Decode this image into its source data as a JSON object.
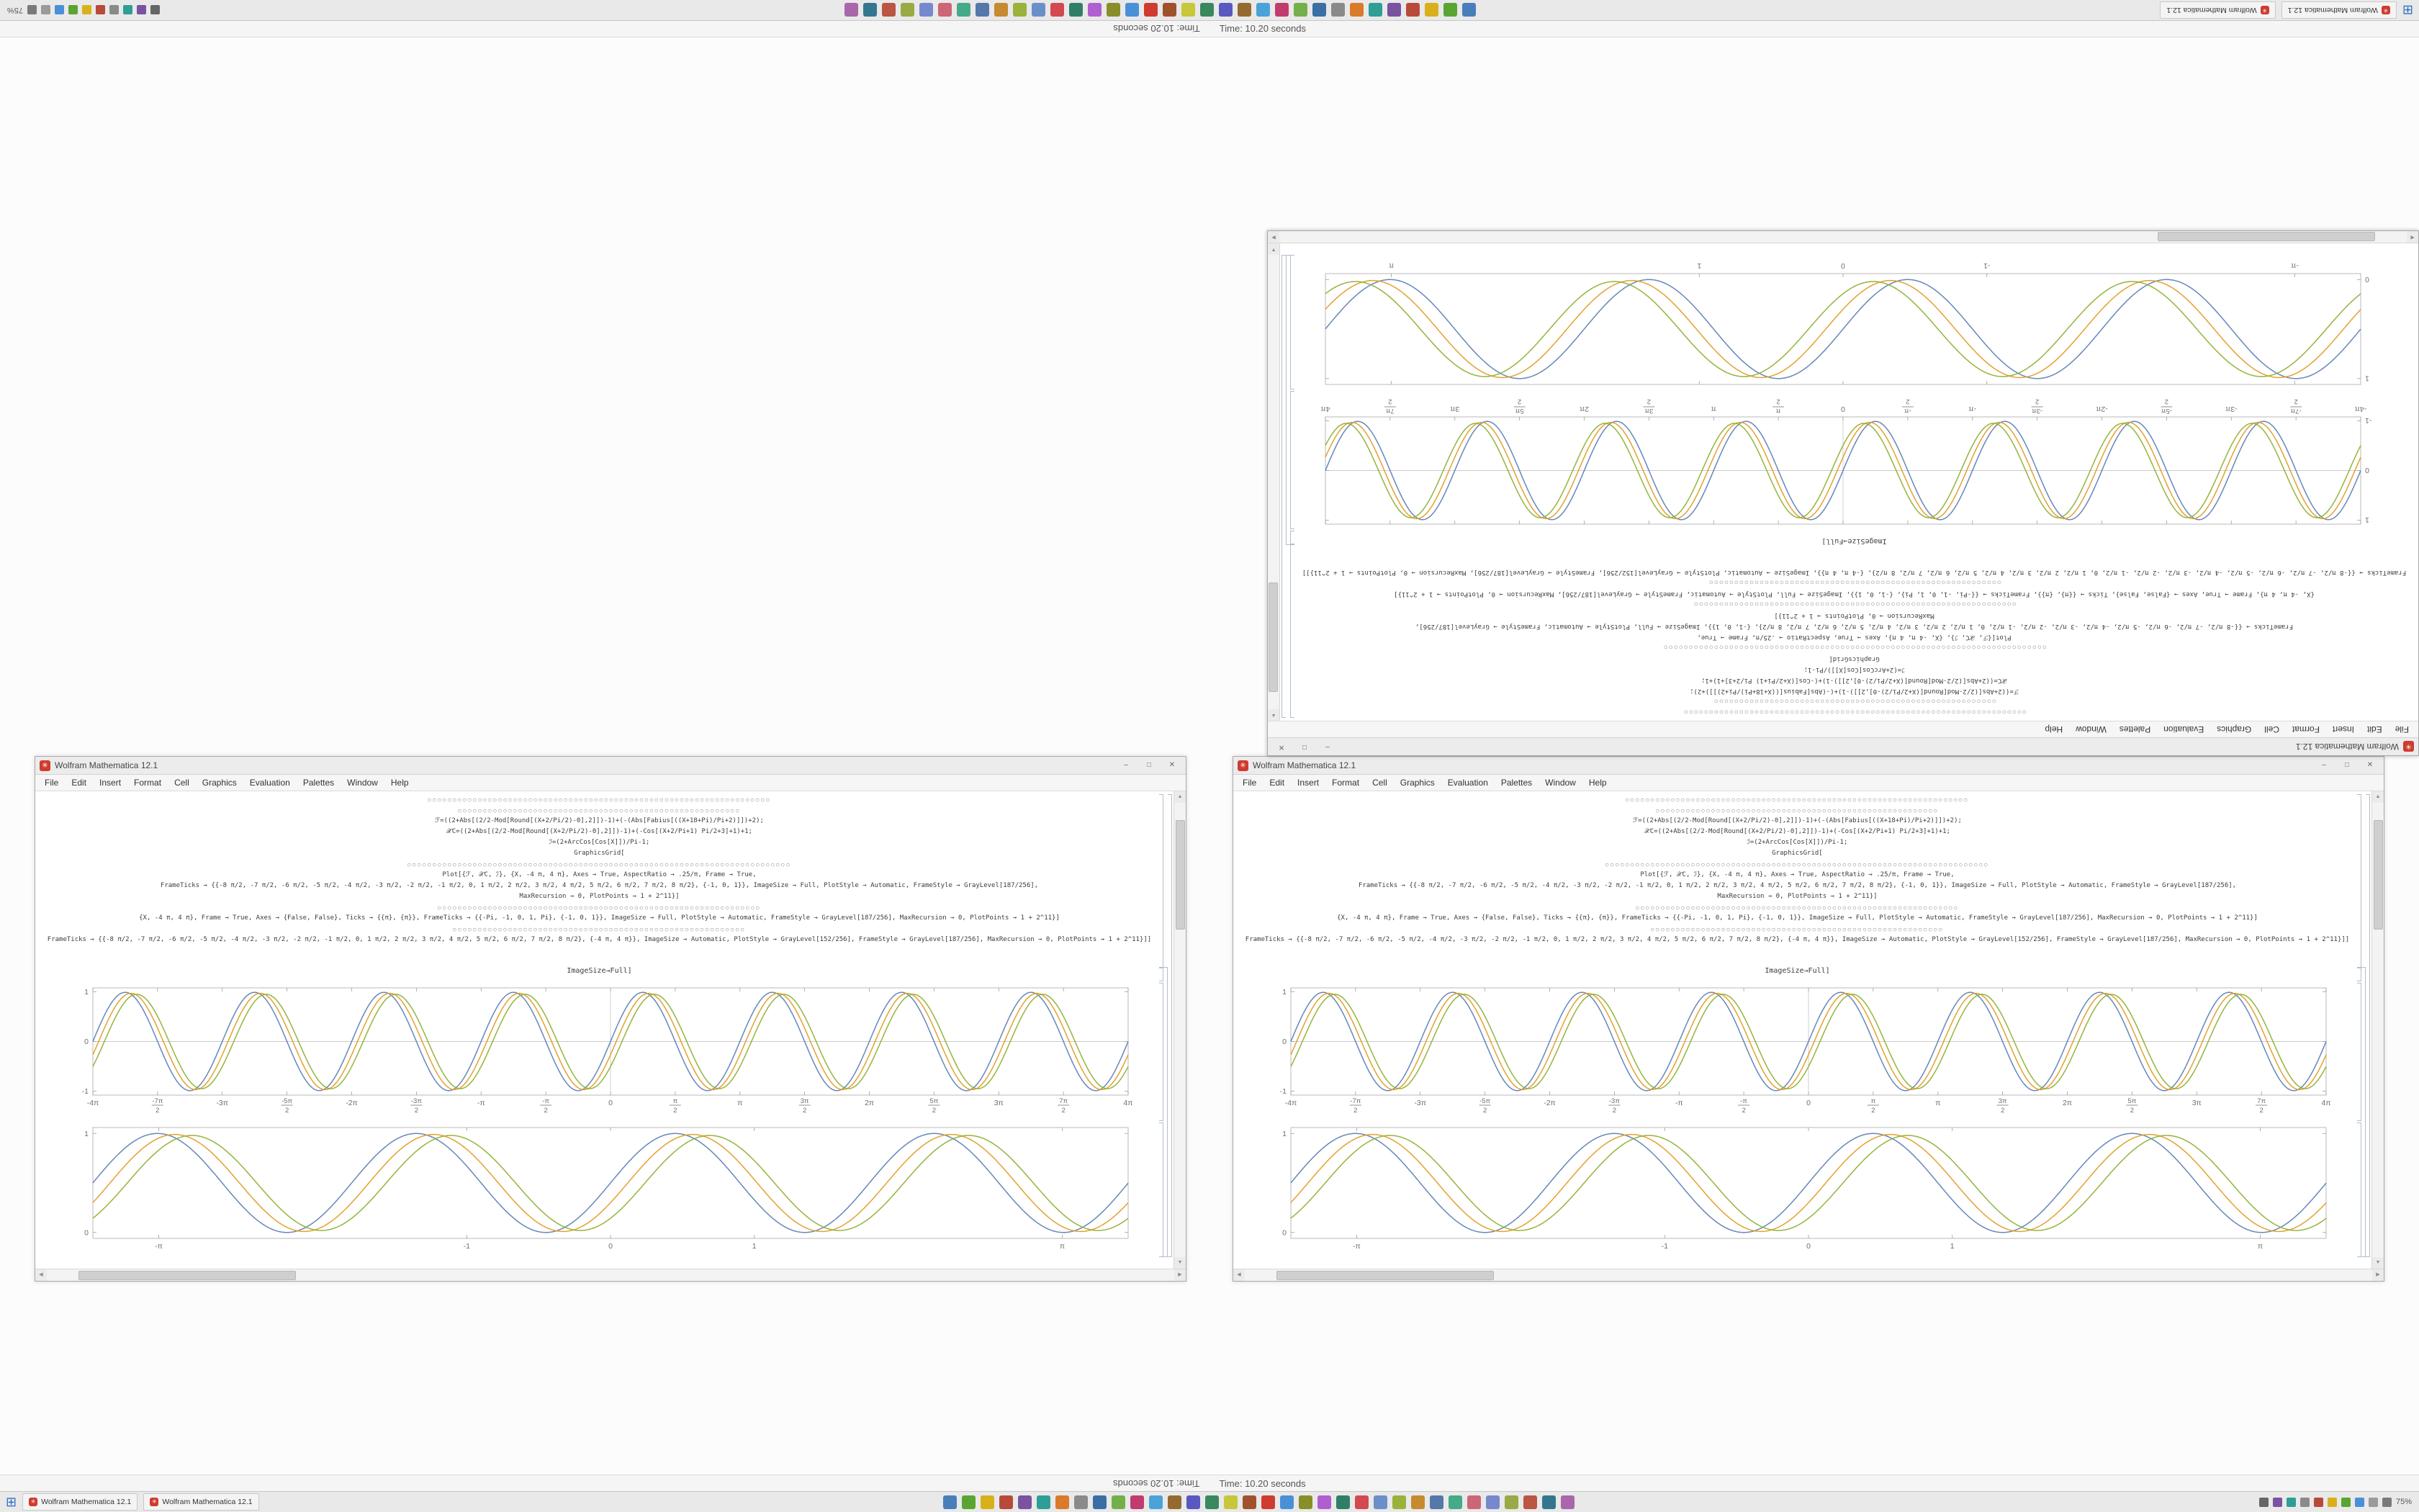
{
  "app": {
    "name": "Wolfram Mathematica"
  },
  "status": {
    "timing_text": "Time: 10.20 seconds"
  },
  "icons": {
    "start": "⊞",
    "mathematica_glyph": "✳",
    "minimize": "–",
    "maximize": "□",
    "close": "✕",
    "scroll_up": "▲",
    "scroll_down": "▼",
    "scroll_left": "◀",
    "scroll_right": "▶"
  },
  "taskbar": {
    "window_buttons": [
      {
        "label": "Wolfram Mathematica 12.1"
      },
      {
        "label": "Wolfram Mathematica 12.1"
      }
    ],
    "app_icons": [
      "#4a7ebb",
      "#5aa532",
      "#d8b11a",
      "#b84a3a",
      "#7a52a0",
      "#2e9e97",
      "#d97b2a",
      "#8a8a8a",
      "#3a6ea5",
      "#74b04a",
      "#c23b6f",
      "#4aa3d8",
      "#946a2f",
      "#5858c0",
      "#39885e",
      "#c7c73a",
      "#a0522d",
      "#cf3b2e",
      "#4a90d9",
      "#888f28",
      "#b05fd0",
      "#2f7f68",
      "#d4484f",
      "#6b8fc9",
      "#9ab23a",
      "#c78a2f",
      "#5577aa",
      "#44aa88",
      "#cc6677",
      "#7788cc",
      "#99aa44",
      "#bb5544",
      "#33778f",
      "#aa66aa"
    ],
    "tray": {
      "icons": [
        "#7a7a7a",
        "#9a9a9a",
        "#4a90d9",
        "#5aa532",
        "#d8b11a",
        "#b84a3a",
        "#8a8a8a",
        "#2e9e97",
        "#7a52a0",
        "#666666"
      ],
      "zoom_text": "75%"
    }
  },
  "notebook": {
    "titlebar": {
      "title": "Wolfram Mathematica 12.1"
    },
    "menu_items": [
      "File",
      "Edit",
      "Insert",
      "Format",
      "Cell",
      "Graphics",
      "Evaluation",
      "Palettes",
      "Window",
      "Help"
    ],
    "code_lines": [
      {
        "t": "circles",
        "text": "○○○○○○○○○○○○○○○○○○○○○○○○○○○○○○○○○○○○○○○○○○○○○○○○○○○○○○○○○○○○○○○○○○○○"
      },
      {
        "t": "circles",
        "text": "○○○○○○○○○○○○○○○○○○○○○○○○○○○○○○○○○○○○○○○○○○○○○○○○○○○○○○○○"
      },
      {
        "t": "code",
        "text": "ℱ=((2+Abs[(2/2-Mod[Round[(X+2/Pi/2)-0],2]])-1)+(-(Abs[Fabius[((X+18+Pi)/Pi+2)]])+2);"
      },
      {
        "t": "code",
        "text": "𝒳C=((2+Abs[(2/2-Mod[Round[(X+2/Pi/2)-0],2]])-1)+(-Cos[(X+2/Pi+1) Pi/2+3]+1)+1;"
      },
      {
        "t": "code",
        "text": "ℐ=(2+ArcCos[Cos[X]])/Pi-1;"
      },
      {
        "t": "code",
        "text": "GraphicsGrid["
      },
      {
        "t": "circles",
        "text": "○○○○○○○○○○○○○○○○○○○○○○○○○○○○○○○○○○○○○○○○○○○○○○○○○○○○○○○○○○○○○○○○○○○○○○○○○○○○"
      },
      {
        "t": "code",
        "text": "Plot[{ℱ, 𝒳C, ℐ}, {X, -4 π, 4 π}, Axes → True, AspectRatio → .25/π, Frame → True,"
      },
      {
        "t": "code",
        "text": "FrameTicks → {{-8 π/2, -7 π/2, -6 π/2, -5 π/2, -4 π/2, -3 π/2, -2 π/2, -1 π/2, 0, 1 π/2, 2 π/2, 3 π/2, 4 π/2, 5 π/2, 6 π/2, 7 π/2, 8 π/2}, {-1, 0, 1}}, ImageSize → Full, PlotStyle → Automatic, FrameStyle → GrayLevel[187/256],"
      },
      {
        "t": "code",
        "text": "MaxRecursion → 0, PlotPoints → 1 + 2^11}]"
      },
      {
        "t": "circles",
        "text": "○○○○○○○○○○○○○○○○○○○○○○○○○○○○○○○○○○○○○○○○○○○○○○○○○○○○○○○○○○○○○○○○"
      },
      {
        "t": "code",
        "text": "{X, -4 π, 4 π}, Frame → True, Axes → {False, False}, Ticks → {{π}, {π}}, FrameTicks → {{-Pi, -1, 0, 1, Pi}, {-1, 0, 1}}, ImageSize → Full, PlotStyle → Automatic, FrameStyle → GrayLevel[187/256], MaxRecursion → 0, PlotPoints → 1 + 2^11}]"
      },
      {
        "t": "circles",
        "text": "○○○○○○○○○○○○○○○○○○○○○○○○○○○○○○○○○○○○○○○○○○○○○○○○○○○○○○○○○○"
      },
      {
        "t": "code",
        "text": "FrameTicks → {{-8 π/2, -7 π/2, -6 π/2, -5 π/2, -4 π/2, -3 π/2, -2 π/2, -1 π/2, 0, 1 π/2, 2 π/2, 3 π/2, 4 π/2, 5 π/2, 6 π/2, 7 π/2, 8 π/2}, {-4 π, 4 π}}, ImageSize → Automatic, PlotStyle → GrayLevel[152/256], FrameStyle → GrayLevel[187/256], MaxRecursion → 0, PlotPoints → 1 + 2^11}]]"
      }
    ],
    "label_cell": "ImageSize→Full]"
  },
  "chart_data": [
    {
      "id": "dense",
      "type": "line",
      "title": "",
      "xlabel": "",
      "ylabel": "",
      "x_range": [
        -12.566,
        12.566
      ],
      "y_range": [
        -1.08,
        1.08
      ],
      "grid": false,
      "axes": true,
      "frame_color": "#bababa",
      "axis_color": "#cccccc",
      "freq": 2,
      "x_ticks": [
        {
          "v": -12.566,
          "label": "-4π"
        },
        {
          "v": -10.996,
          "label": "-7π/2"
        },
        {
          "v": -9.425,
          "label": "-3π"
        },
        {
          "v": -7.854,
          "label": "-5π/2"
        },
        {
          "v": -6.283,
          "label": "-2π"
        },
        {
          "v": -4.712,
          "label": "-3π/2"
        },
        {
          "v": -3.1416,
          "label": "-π"
        },
        {
          "v": -1.5708,
          "label": "-π/2"
        },
        {
          "v": 0,
          "label": "0"
        },
        {
          "v": 1.5708,
          "label": "π/2"
        },
        {
          "v": 3.1416,
          "label": "π"
        },
        {
          "v": 4.712,
          "label": "3π/2"
        },
        {
          "v": 6.283,
          "label": "2π"
        },
        {
          "v": 7.854,
          "label": "5π/2"
        },
        {
          "v": 9.425,
          "label": "3π"
        },
        {
          "v": 10.996,
          "label": "7π/2"
        },
        {
          "v": 12.566,
          "label": "4π"
        }
      ],
      "y_ticks": [
        {
          "v": -1,
          "label": "-1"
        },
        {
          "v": 0,
          "label": "0"
        },
        {
          "v": 1,
          "label": "1"
        }
      ],
      "series": [
        {
          "name": "ℱ",
          "expr": "sin(2x)",
          "phase": 0,
          "amp": 0.99,
          "offset": 0,
          "color": "#5e81b5"
        },
        {
          "name": "𝒳C",
          "expr": "sin(2(x-0.14))",
          "phase": 0.14,
          "amp": 0.97,
          "offset": 0,
          "color": "#e19c24"
        },
        {
          "name": "ℐ",
          "expr": "sin(2(x-0.28))",
          "phase": 0.28,
          "amp": 0.95,
          "offset": 0,
          "color": "#8fb032"
        }
      ]
    },
    {
      "id": "smooth",
      "type": "line",
      "title": "",
      "xlabel": "",
      "ylabel": "",
      "x_range": [
        -3.6,
        3.6
      ],
      "y_range": [
        -0.06,
        1.06
      ],
      "grid": false,
      "axes": false,
      "frame_color": "#bababa",
      "axis_color": "#cccccc",
      "freq": 3.49,
      "x_ticks": [
        {
          "v": -3.1416,
          "label": "-π"
        },
        {
          "v": -1,
          "label": "-1"
        },
        {
          "v": 0,
          "label": "0"
        },
        {
          "v": 1,
          "label": "1"
        },
        {
          "v": 3.1416,
          "label": "π"
        }
      ],
      "y_ticks": [
        {
          "v": 0,
          "label": "0"
        },
        {
          "v": 1,
          "label": "1"
        }
      ],
      "series": [
        {
          "name": "ℱ",
          "expr": "0.5+0.5 sin(3.49x)",
          "phase": 0,
          "amp": 0.5,
          "offset": 0.5,
          "color": "#5e81b5"
        },
        {
          "name": "𝒳C",
          "expr": "0.5+0.5 sin(3.49(x-0.12))",
          "phase": 0.12,
          "amp": 0.49,
          "offset": 0.5,
          "color": "#e19c24"
        },
        {
          "name": "ℐ",
          "expr": "0.5+0.5 sin(3.49(x-0.24))",
          "phase": 0.24,
          "amp": 0.48,
          "offset": 0.5,
          "color": "#8fb032"
        }
      ]
    }
  ]
}
